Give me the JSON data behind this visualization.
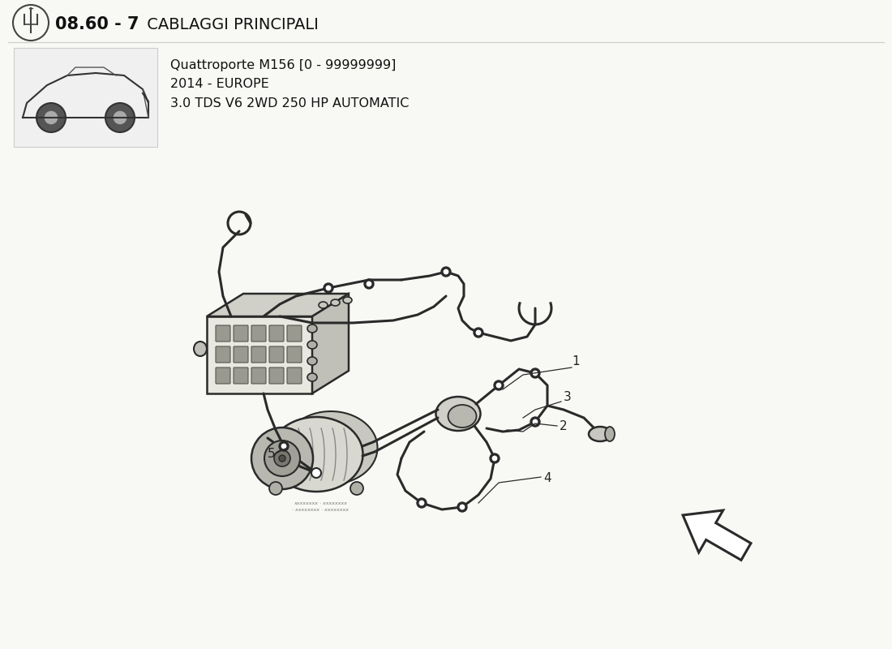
{
  "background_color": "#ffffff",
  "page_bg": "#f8f8f5",
  "title_bold_part": "08.60 - 7",
  "title_light_part": " CABLAGGI PRINCIPALI",
  "subtitle_lines": [
    "Quattroporte M156 [0 - 99999999]",
    "2014 - EUROPE",
    "3.0 TDS V6 2WD 250 HP AUTOMATIC"
  ],
  "line_color": "#2a2a2a",
  "fill_light": "#d0d0d0",
  "fill_mid": "#b0b0b0",
  "fill_dark": "#888888",
  "part_labels": [
    "1",
    "2",
    "3",
    "4",
    "5"
  ],
  "title_fontsize": 15,
  "subtitle_fontsize": 11
}
